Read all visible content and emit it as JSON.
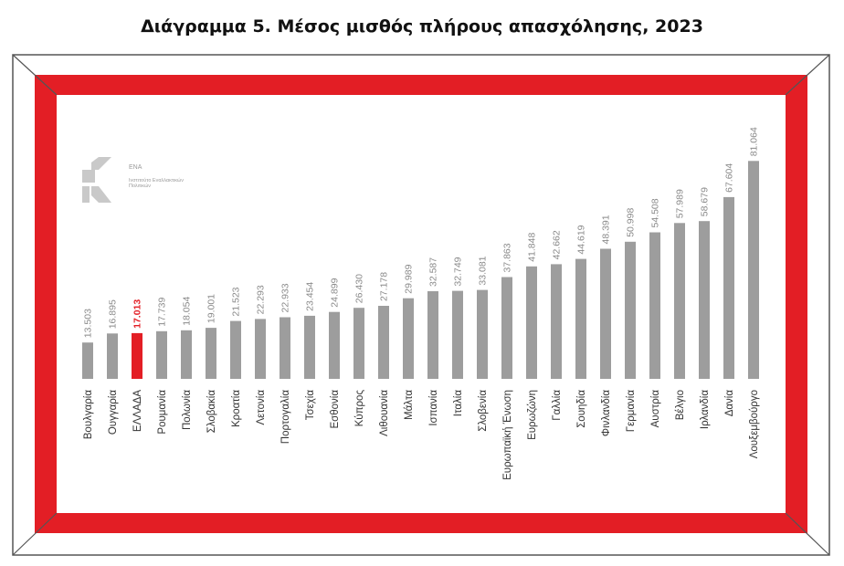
{
  "title": "Διάγραμμα 5. Μέσος μισθός πλήρους απασχόλησης, 2023",
  "logo": {
    "name": "ΕΝΑ",
    "subtitle": "Ινστιτούτο Εναλλακτικών Πολιτικών",
    "icon": "ena-logo-icon"
  },
  "colors": {
    "frame": "#e31e25",
    "bar": "#9d9d9d",
    "highlight": "#e31e25",
    "label": "#333333",
    "value": "#8a8a8a"
  },
  "chart_data": {
    "type": "bar",
    "title": "Διάγραμμα 5. Μέσος μισθός πλήρους απασχόλησης, 2023",
    "xlabel": "",
    "ylabel": "",
    "ylim": [
      0,
      90000
    ],
    "grid": false,
    "legend": "none",
    "highlight_category": "ΕΛΛΑΔΑ",
    "categories": [
      "Βουλγαρία",
      "Ουγγαρία",
      "ΕΛΛΑΔΑ",
      "Ρουμανία",
      "Πολωνία",
      "Σλοβακία",
      "Κροατία",
      "Λετονία",
      "Πορτογαλία",
      "Τσεχία",
      "Εσθονία",
      "Κύπρος",
      "Λιθουανία",
      "Μάλτα",
      "Ισπανία",
      "Ιταλία",
      "Σλοβενία",
      "Ευρωπαϊκή Ένωση",
      "Ευρωζώνη",
      "Γαλλία",
      "Σουηδία",
      "Φινλανδία",
      "Γερμανία",
      "Αυστρία",
      "Βέλγιο",
      "Ιρλανδία",
      "Δανία",
      "Λουξεμβούργο"
    ],
    "values": [
      13503,
      16895,
      17013,
      17739,
      18054,
      19001,
      21523,
      22293,
      22933,
      23454,
      24899,
      26430,
      27178,
      29989,
      32587,
      32749,
      33081,
      37863,
      41848,
      42662,
      44619,
      48391,
      50998,
      54508,
      57989,
      58679,
      67604,
      81064
    ],
    "value_labels": [
      "13.503",
      "16.895",
      "17.013",
      "17.739",
      "18.054",
      "19.001",
      "21.523",
      "22.293",
      "22.933",
      "23.454",
      "24.899",
      "26.430",
      "27.178",
      "29.989",
      "32.587",
      "32.749",
      "33.081",
      "37.863",
      "41.848",
      "42.662",
      "44.619",
      "48.391",
      "50.998",
      "54.508",
      "57.989",
      "58.679",
      "67.604",
      "81.064"
    ]
  }
}
